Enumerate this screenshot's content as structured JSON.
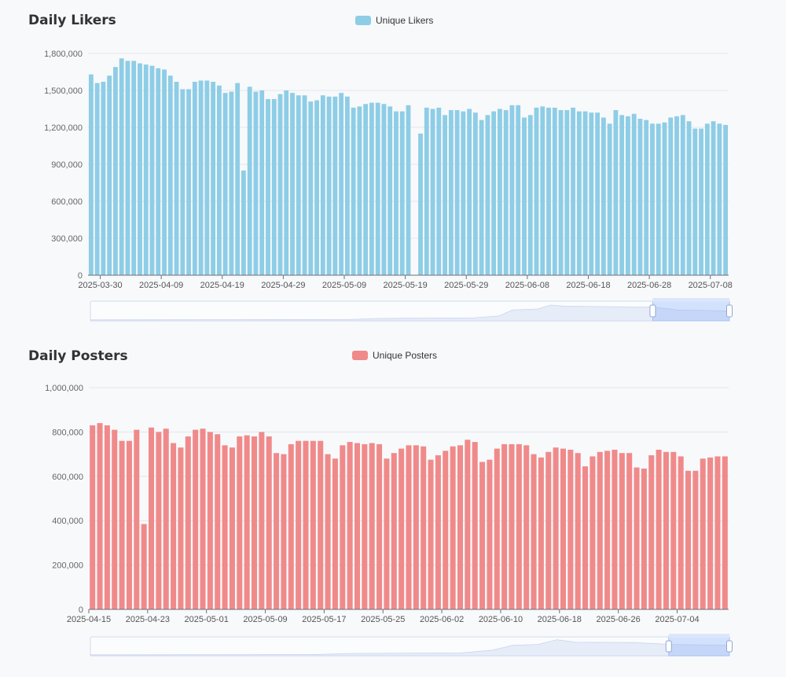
{
  "charts": [
    {
      "title": "Daily Likers",
      "legend_label": "Unique Likers",
      "color": "#8ecde6",
      "y_ticks": [
        "0",
        "300,000",
        "600,000",
        "900,000",
        "1,200,000",
        "1,500,000",
        "1,800,000"
      ],
      "x_tick_labels": [
        "2025-03-30",
        "2025-04-09",
        "2025-04-19",
        "2025-04-29",
        "2025-05-09",
        "2025-05-19",
        "2025-05-29",
        "2025-06-08",
        "2025-06-18",
        "2025-06-28",
        "2025-07-08"
      ]
    },
    {
      "title": "Daily Posters",
      "legend_label": "Unique Posters",
      "color": "#f08a8a",
      "y_ticks": [
        "0",
        "200,000",
        "400,000",
        "600,000",
        "800,000",
        "1,000,000"
      ],
      "x_tick_labels": [
        "2025-04-15",
        "2025-04-23",
        "2025-05-01",
        "2025-05-09",
        "2025-05-17",
        "2025-05-25",
        "2025-06-02",
        "2025-06-10",
        "2025-06-18",
        "2025-06-26",
        "2025-07-04"
      ]
    }
  ],
  "chart_data": [
    {
      "type": "bar",
      "title": "Daily Likers",
      "series": [
        {
          "name": "Unique Likers",
          "values": [
            1630000,
            1560000,
            1570000,
            1620000,
            1690000,
            1760000,
            1740000,
            1740000,
            1720000,
            1710000,
            1700000,
            1680000,
            1670000,
            1620000,
            1570000,
            1510000,
            1510000,
            1570000,
            1580000,
            1580000,
            1570000,
            1540000,
            1480000,
            1490000,
            1560000,
            850000,
            1530000,
            1490000,
            1500000,
            1430000,
            1430000,
            1470000,
            1500000,
            1480000,
            1460000,
            1460000,
            1410000,
            1420000,
            1460000,
            1450000,
            1450000,
            1480000,
            1450000,
            1360000,
            1370000,
            1390000,
            1400000,
            1400000,
            1390000,
            1370000,
            1330000,
            1330000,
            1380000,
            null,
            1150000,
            1360000,
            1350000,
            1360000,
            1300000,
            1340000,
            1340000,
            1330000,
            1350000,
            1320000,
            1260000,
            1300000,
            1330000,
            1350000,
            1340000,
            1380000,
            1380000,
            1280000,
            1300000,
            1360000,
            1370000,
            1360000,
            1360000,
            1340000,
            1340000,
            1360000,
            1330000,
            1330000,
            1320000,
            1320000,
            1280000,
            1230000,
            1340000,
            1300000,
            1290000,
            1310000,
            1270000,
            1260000,
            1230000,
            1230000,
            1240000,
            1280000,
            1290000,
            1300000,
            1250000,
            1190000,
            1190000,
            1230000,
            1250000,
            1230000,
            1220000
          ]
        }
      ],
      "ylim": [
        0,
        1800000
      ],
      "xlabel": "",
      "ylabel": "",
      "grid": true,
      "legend_position": "top-center"
    },
    {
      "type": "bar",
      "title": "Daily Posters",
      "series": [
        {
          "name": "Unique Posters",
          "values": [
            830000,
            840000,
            830000,
            810000,
            760000,
            760000,
            810000,
            385000,
            820000,
            800000,
            815000,
            750000,
            730000,
            780000,
            810000,
            815000,
            800000,
            790000,
            740000,
            730000,
            780000,
            785000,
            780000,
            800000,
            780000,
            705000,
            700000,
            745000,
            760000,
            760000,
            760000,
            760000,
            700000,
            680000,
            740000,
            755000,
            750000,
            745000,
            750000,
            745000,
            680000,
            705000,
            725000,
            740000,
            740000,
            735000,
            675000,
            695000,
            715000,
            735000,
            740000,
            765000,
            755000,
            665000,
            675000,
            725000,
            745000,
            745000,
            745000,
            740000,
            700000,
            685000,
            710000,
            730000,
            725000,
            720000,
            705000,
            645000,
            690000,
            710000,
            715000,
            720000,
            705000,
            705000,
            640000,
            635000,
            695000,
            720000,
            710000,
            710000,
            690000,
            625000,
            625000,
            680000,
            685000,
            690000,
            690000
          ]
        }
      ],
      "ylim": [
        0,
        1000000
      ],
      "xlabel": "",
      "ylabel": "",
      "grid": true,
      "legend_position": "top-center"
    }
  ]
}
